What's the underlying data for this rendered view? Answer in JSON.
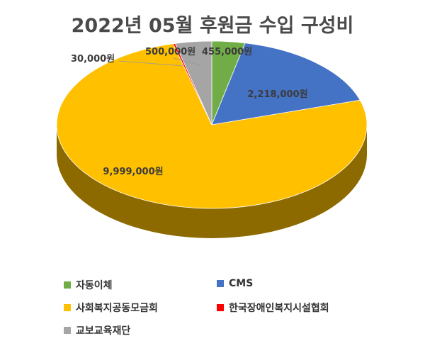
{
  "chart_data": {
    "type": "pie",
    "title": "2022년 05월 후원금 수입 구성비",
    "slices": [
      {
        "name": "자동이체",
        "value": 455000,
        "label": "455,000원",
        "color": "#70ad47"
      },
      {
        "name": "CMS",
        "value": 2218000,
        "label": "2,218,000원",
        "color": "#4472c4"
      },
      {
        "name": "사회복지공동모금회",
        "value": 9999000,
        "label": "9,999,000원",
        "color": "#ffc000"
      },
      {
        "name": "한국장애인복지시설협회",
        "value": 30000,
        "label": "30,000원",
        "color": "#ff0000"
      },
      {
        "name": "교보교육재단",
        "value": 500000,
        "label": "500,000원",
        "color": "#a5a5a5"
      }
    ],
    "legend_placement": "bottom",
    "three_d": true
  }
}
